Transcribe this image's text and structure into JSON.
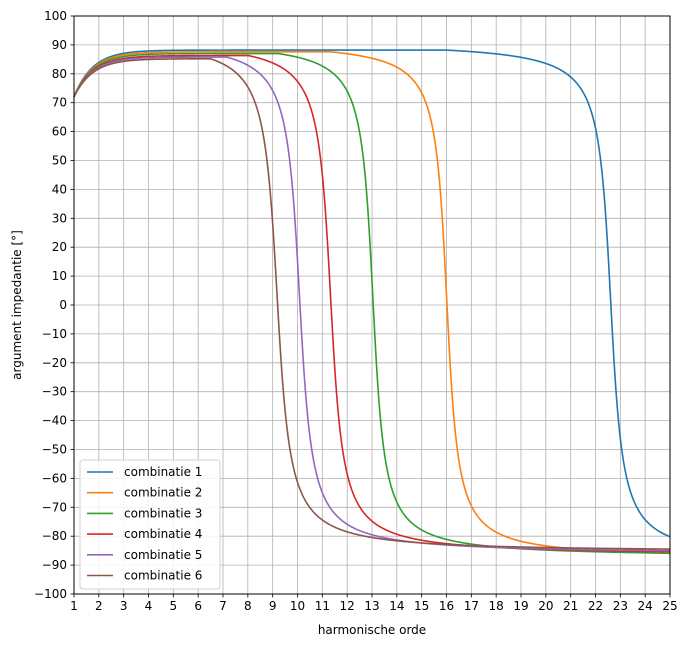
{
  "chart_data": {
    "type": "line",
    "title": "",
    "xlabel": "harmonische orde",
    "ylabel": "argument impedantie [°]",
    "xlim": [
      1,
      25
    ],
    "ylim": [
      -100,
      100
    ],
    "xticks": [
      1,
      2,
      3,
      4,
      5,
      6,
      7,
      8,
      9,
      10,
      11,
      12,
      13,
      14,
      15,
      16,
      17,
      18,
      19,
      20,
      21,
      22,
      23,
      24,
      25
    ],
    "yticks": [
      -100,
      -90,
      -80,
      -70,
      -60,
      -50,
      -40,
      -30,
      -20,
      -10,
      0,
      10,
      20,
      30,
      40,
      50,
      60,
      70,
      80,
      90,
      100
    ],
    "grid": true,
    "legend_position": "lower-left",
    "series": [
      {
        "name": "combinatie 1",
        "color": "#1f77b4",
        "resonance": 22.62,
        "plateau": 88.2,
        "start": 72,
        "points": [
          [
            1,
            72
          ],
          [
            2,
            80
          ],
          [
            3,
            83.5
          ],
          [
            5,
            86.3
          ],
          [
            8,
            87.5
          ],
          [
            12,
            88
          ],
          [
            16,
            87.8
          ],
          [
            19,
            87.1
          ],
          [
            21,
            85
          ],
          [
            22,
            80
          ],
          [
            22.5,
            50
          ],
          [
            22.62,
            0
          ],
          [
            22.8,
            -55
          ],
          [
            23.2,
            -75
          ],
          [
            24,
            -83
          ],
          [
            25,
            -86.5
          ]
        ]
      },
      {
        "name": "combinatie 2",
        "color": "#ff7f0e",
        "resonance": 16.02,
        "plateau": 87.6,
        "start": 72,
        "points": [
          [
            1,
            72
          ],
          [
            2,
            80
          ],
          [
            3,
            83.5
          ],
          [
            5,
            86
          ],
          [
            8,
            87
          ],
          [
            11,
            87.2
          ],
          [
            13,
            86.5
          ],
          [
            14.5,
            84
          ],
          [
            15.5,
            77
          ],
          [
            15.9,
            40
          ],
          [
            16.02,
            0
          ],
          [
            16.2,
            -45
          ],
          [
            16.8,
            -78
          ],
          [
            18,
            -85.5
          ],
          [
            20,
            -88.3
          ],
          [
            22,
            -89.4
          ],
          [
            25,
            -89.8
          ]
        ]
      },
      {
        "name": "combinatie 3",
        "color": "#2ca02c",
        "resonance": 13.05,
        "plateau": 87.0,
        "start": 72,
        "points": [
          [
            1,
            72
          ],
          [
            2,
            80
          ],
          [
            3,
            83.5
          ],
          [
            5,
            85.8
          ],
          [
            7,
            86.5
          ],
          [
            9,
            86.5
          ],
          [
            10.5,
            85.5
          ],
          [
            11.7,
            82
          ],
          [
            12.5,
            73
          ],
          [
            12.95,
            30
          ],
          [
            13.05,
            0
          ],
          [
            13.2,
            -45
          ],
          [
            13.8,
            -78
          ],
          [
            15,
            -86
          ],
          [
            17,
            -88.6
          ],
          [
            20,
            -89.5
          ],
          [
            25,
            -89.9
          ]
        ]
      },
      {
        "name": "combinatie 4",
        "color": "#d62728",
        "resonance": 11.35,
        "plateau": 86.3,
        "start": 72,
        "points": [
          [
            1,
            72
          ],
          [
            2,
            80
          ],
          [
            3,
            83.5
          ],
          [
            5,
            85.4
          ],
          [
            7,
            85.9
          ],
          [
            8.5,
            85.5
          ],
          [
            9.7,
            83
          ],
          [
            10.6,
            77
          ],
          [
            11.25,
            35
          ],
          [
            11.35,
            0
          ],
          [
            11.5,
            -45
          ],
          [
            12,
            -75
          ],
          [
            13,
            -85
          ],
          [
            15,
            -88.5
          ],
          [
            18,
            -89.6
          ],
          [
            25,
            -89.9
          ]
        ]
      },
      {
        "name": "combinatie 5",
        "color": "#9467bd",
        "resonance": 10.1,
        "plateau": 85.8,
        "start": 72,
        "points": [
          [
            1,
            72
          ],
          [
            2,
            80
          ],
          [
            3,
            83.5
          ],
          [
            5,
            85.2
          ],
          [
            6.5,
            85.5
          ],
          [
            7.7,
            84.5
          ],
          [
            8.8,
            81
          ],
          [
            9.6,
            70
          ],
          [
            10.0,
            30
          ],
          [
            10.1,
            0
          ],
          [
            10.25,
            -45
          ],
          [
            10.8,
            -76
          ],
          [
            12,
            -86
          ],
          [
            14,
            -88.8
          ],
          [
            17,
            -89.6
          ],
          [
            25,
            -89.9
          ]
        ]
      },
      {
        "name": "combinatie 6",
        "color": "#8c564b",
        "resonance": 9.2,
        "plateau": 85.2,
        "start": 72,
        "points": [
          [
            1,
            72
          ],
          [
            2,
            80
          ],
          [
            3,
            83.5
          ],
          [
            5,
            84.8
          ],
          [
            6,
            84.9
          ],
          [
            7,
            84
          ],
          [
            8,
            80.5
          ],
          [
            8.6,
            72
          ],
          [
            9.0,
            45
          ],
          [
            9.2,
            0
          ],
          [
            9.35,
            -45
          ],
          [
            9.9,
            -78
          ],
          [
            11,
            -86
          ],
          [
            13,
            -88.7
          ],
          [
            16,
            -89.6
          ],
          [
            25,
            -89.9
          ]
        ]
      }
    ]
  }
}
